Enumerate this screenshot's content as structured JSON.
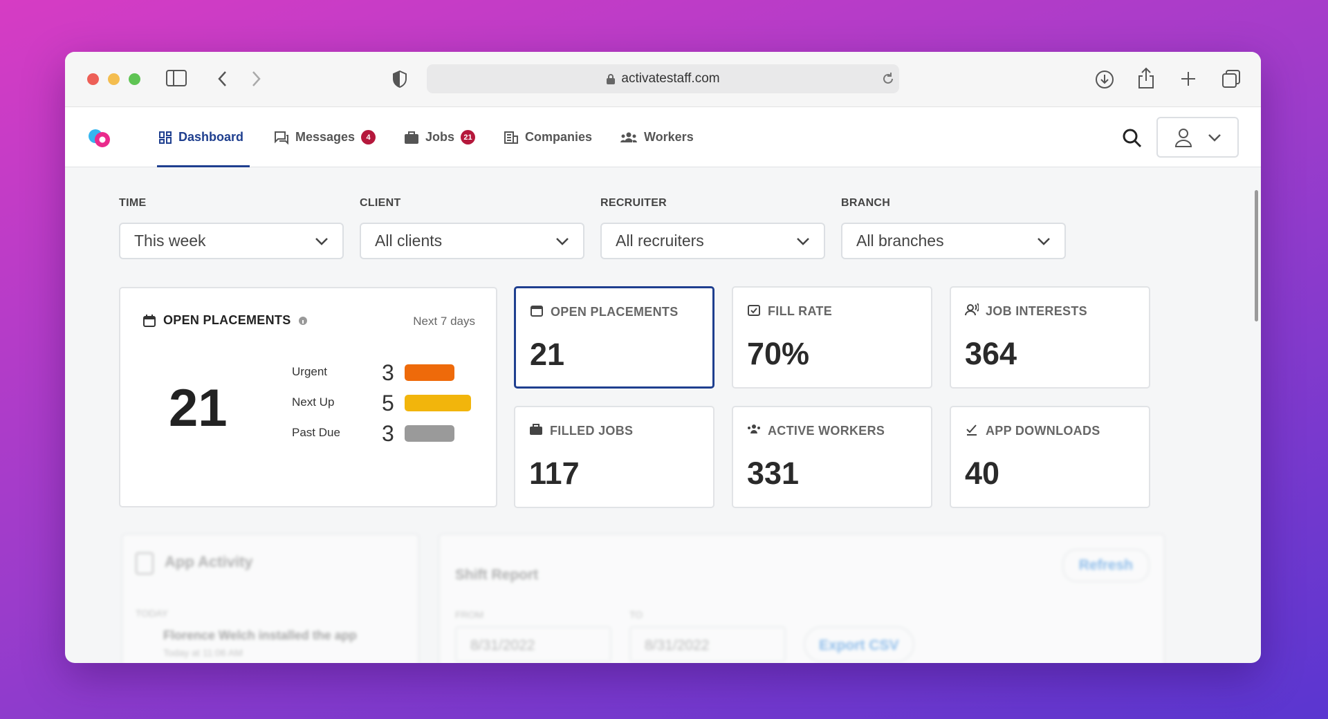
{
  "browser": {
    "url": "activatestaff.com"
  },
  "nav": {
    "items": [
      {
        "label": "Dashboard"
      },
      {
        "label": "Messages",
        "badge": "4"
      },
      {
        "label": "Jobs",
        "badge": "21"
      },
      {
        "label": "Companies"
      },
      {
        "label": "Workers"
      }
    ]
  },
  "filters": [
    {
      "label": "TIME",
      "value": "This week"
    },
    {
      "label": "CLIENT",
      "value": "All clients"
    },
    {
      "label": "RECRUITER",
      "value": "All recruiters"
    },
    {
      "label": "BRANCH",
      "value": "All branches"
    }
  ],
  "open_placements": {
    "title": "OPEN PLACEMENTS",
    "period": "Next 7 days",
    "total": "21",
    "breakdown": [
      {
        "label": "Urgent",
        "value": 3,
        "color": "#ee6a0a"
      },
      {
        "label": "Next Up",
        "value": 5,
        "color": "#f2b50c"
      },
      {
        "label": "Past Due",
        "value": 3,
        "color": "#9a9a9a"
      }
    ]
  },
  "stats": [
    {
      "title": "OPEN PLACEMENTS",
      "value": "21"
    },
    {
      "title": "FILL RATE",
      "value": "70%"
    },
    {
      "title": "JOB INTERESTS",
      "value": "364"
    },
    {
      "title": "FILLED JOBS",
      "value": "117"
    },
    {
      "title": "ACTIVE WORKERS",
      "value": "331"
    },
    {
      "title": "APP DOWNLOADS",
      "value": "40"
    }
  ],
  "app_activity": {
    "title": "App Activity",
    "section": "TODAY",
    "event": "Florence Welch installed the app",
    "time": "Today at 11:06 AM"
  },
  "shift_report": {
    "title": "Shift Report",
    "refresh": "Refresh",
    "from_label": "FROM",
    "from": "8/31/2022",
    "to_label": "TO",
    "to": "8/31/2022",
    "export": "Export CSV"
  }
}
